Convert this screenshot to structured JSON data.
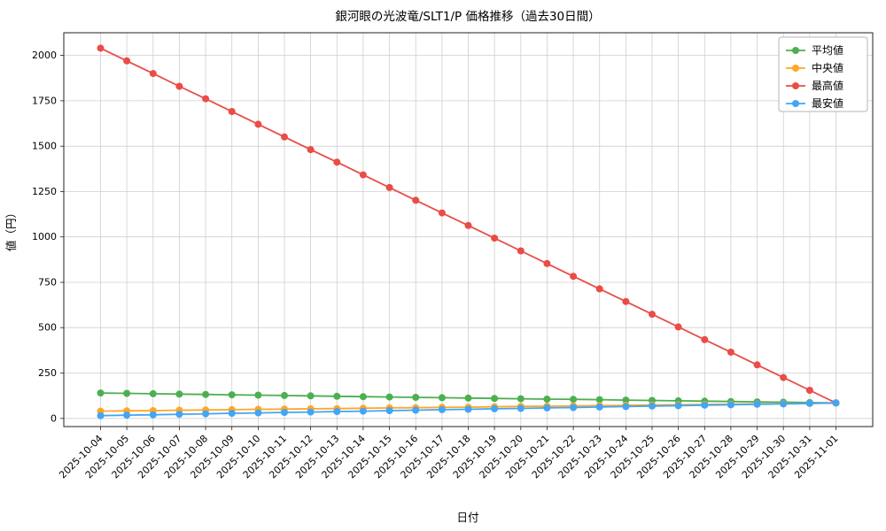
{
  "chart_data": {
    "type": "line",
    "title": "銀河眼の光波竜/SLT1/P 価格推移（過去30日間）",
    "xlabel": "日付",
    "ylabel": "値（円）",
    "grid": true,
    "legend_position": "upper right",
    "ylim": [
      -45,
      2125
    ],
    "yticks": [
      0,
      250,
      500,
      750,
      1000,
      1250,
      1500,
      1750,
      2000
    ],
    "x": [
      "2025-10-04",
      "2025-10-05",
      "2025-10-06",
      "2025-10-07",
      "2025-10-08",
      "2025-10-09",
      "2025-10-10",
      "2025-10-11",
      "2025-10-12",
      "2025-10-13",
      "2025-10-14",
      "2025-10-15",
      "2025-10-16",
      "2025-10-17",
      "2025-10-18",
      "2025-10-19",
      "2025-10-20",
      "2025-10-21",
      "2025-10-22",
      "2025-10-23",
      "2025-10-24",
      "2025-10-25",
      "2025-10-26",
      "2025-10-27",
      "2025-10-28",
      "2025-10-29",
      "2025-10-30",
      "2025-10-31",
      "2025-11-01"
    ],
    "series": [
      {
        "id": "mean",
        "name": "平均値",
        "color": "#4caf50",
        "values": [
          140,
          138,
          136,
          134,
          132,
          130,
          128,
          126,
          124,
          122,
          120,
          118,
          116,
          114,
          112,
          110,
          108,
          106,
          105,
          103,
          101,
          99,
          97,
          95,
          93,
          91,
          89,
          87,
          85
        ]
      },
      {
        "id": "median",
        "name": "中央値",
        "color": "#ffa726",
        "values": [
          40,
          42,
          43,
          45,
          46,
          48,
          50,
          51,
          53,
          54,
          56,
          58,
          59,
          61,
          62,
          64,
          66,
          67,
          69,
          70,
          72,
          74,
          75,
          77,
          78,
          80,
          82,
          83,
          85
        ]
      },
      {
        "id": "max",
        "name": "最高値",
        "color": "#ea4c46",
        "values": [
          2040,
          1970,
          1900,
          1830,
          1761,
          1691,
          1621,
          1551,
          1481,
          1412,
          1342,
          1272,
          1202,
          1132,
          1063,
          993,
          923,
          853,
          783,
          714,
          644,
          574,
          504,
          434,
          365,
          295,
          225,
          155,
          85
        ]
      },
      {
        "id": "min",
        "name": "最安値",
        "color": "#42a5f5",
        "values": [
          15,
          18,
          20,
          23,
          25,
          28,
          30,
          33,
          35,
          38,
          40,
          43,
          45,
          48,
          50,
          53,
          55,
          58,
          60,
          63,
          65,
          68,
          70,
          73,
          75,
          78,
          80,
          83,
          85
        ]
      }
    ]
  }
}
